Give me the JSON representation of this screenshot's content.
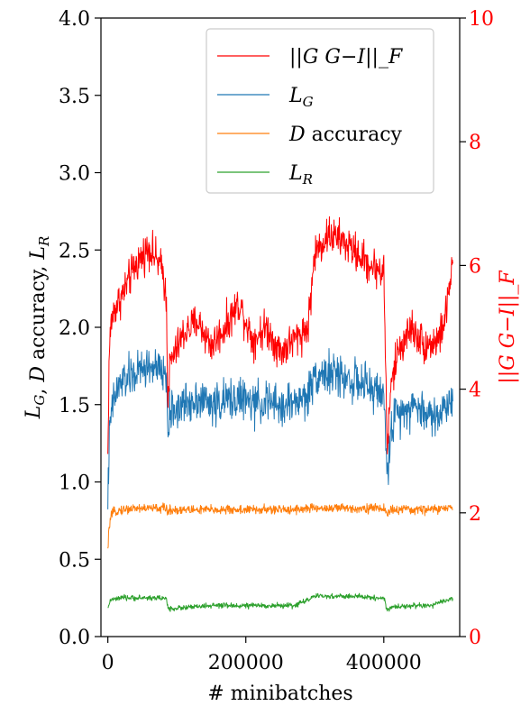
{
  "chart_data": {
    "type": "line",
    "xlabel": "# minibatches",
    "ylabel_left": "L_G, D accuracy, L_R",
    "ylabel_right": "||G G−I||_F",
    "xlim": [
      -10000,
      510000
    ],
    "ylim_left": [
      0.0,
      4.0
    ],
    "ylim_right": [
      0,
      10
    ],
    "x_ticks": [
      0,
      200000,
      400000
    ],
    "x_tick_labels": [
      "0",
      "200000",
      "400000"
    ],
    "y_left_ticks": [
      0.0,
      0.5,
      1.0,
      1.5,
      2.0,
      2.5,
      3.0,
      3.5,
      4.0
    ],
    "y_left_tick_labels": [
      "0.0",
      "0.5",
      "1.0",
      "1.5",
      "2.0",
      "2.5",
      "3.0",
      "3.5",
      "4.0"
    ],
    "y_right_ticks": [
      0,
      2,
      4,
      6,
      8,
      10
    ],
    "y_right_tick_labels": [
      "0",
      "2",
      "4",
      "6",
      "8",
      "10"
    ],
    "legend_position": "top-right",
    "grid": false,
    "colors": {
      "red": "#ff0000",
      "blue": "#1f77b4",
      "orange": "#ff7f0e",
      "green": "#2ca02c",
      "axis": "#000000"
    },
    "series": [
      {
        "name": "||G G−I||_F",
        "axis": "right",
        "color": "#ff0000",
        "noise": 0.45,
        "x": [
          0,
          2000,
          5000,
          10000,
          20000,
          40000,
          60000,
          80000,
          85000,
          87000,
          90000,
          110000,
          130000,
          150000,
          170000,
          190000,
          210000,
          230000,
          250000,
          270000,
          290000,
          300000,
          320000,
          340000,
          360000,
          380000,
          400000,
          403000,
          405000,
          410000,
          420000,
          440000,
          460000,
          480000,
          490000,
          500000
        ],
        "values": [
          2.9,
          4.6,
          5.1,
          5.3,
          5.5,
          6.0,
          6.3,
          5.9,
          5.4,
          3.8,
          4.4,
          4.9,
          5.1,
          4.7,
          5.0,
          5.4,
          4.8,
          5.0,
          4.6,
          4.8,
          5.0,
          6.2,
          6.5,
          6.4,
          6.2,
          6.0,
          5.9,
          4.2,
          3.0,
          4.0,
          4.6,
          5.0,
          4.7,
          4.8,
          5.2,
          6.1
        ]
      },
      {
        "name": "L_G",
        "axis": "left",
        "color": "#1f77b4",
        "noise": 0.2,
        "x": [
          0,
          2000,
          5000,
          10000,
          20000,
          40000,
          60000,
          80000,
          85000,
          87000,
          90000,
          110000,
          130000,
          150000,
          170000,
          190000,
          210000,
          230000,
          250000,
          270000,
          290000,
          300000,
          320000,
          340000,
          360000,
          380000,
          400000,
          403000,
          405000,
          410000,
          420000,
          440000,
          460000,
          480000,
          490000,
          500000
        ],
        "values": [
          0.9,
          1.25,
          1.45,
          1.55,
          1.65,
          1.7,
          1.75,
          1.7,
          1.7,
          1.3,
          1.45,
          1.5,
          1.55,
          1.5,
          1.52,
          1.55,
          1.5,
          1.52,
          1.48,
          1.52,
          1.55,
          1.7,
          1.7,
          1.68,
          1.65,
          1.6,
          1.58,
          1.2,
          1.0,
          1.35,
          1.45,
          1.5,
          1.45,
          1.42,
          1.5,
          1.55
        ]
      },
      {
        "name": "D accuracy",
        "axis": "left",
        "color": "#ff7f0e",
        "noise": 0.045,
        "x": [
          0,
          2000,
          5000,
          10000,
          20000,
          40000,
          60000,
          80000,
          85000,
          87000,
          90000,
          150000,
          200000,
          250000,
          300000,
          350000,
          400000,
          403000,
          405000,
          410000,
          450000,
          500000
        ],
        "values": [
          0.55,
          0.72,
          0.78,
          0.81,
          0.82,
          0.83,
          0.83,
          0.83,
          0.83,
          0.8,
          0.82,
          0.82,
          0.82,
          0.82,
          0.83,
          0.83,
          0.83,
          0.81,
          0.79,
          0.82,
          0.82,
          0.83
        ]
      },
      {
        "name": "L_R",
        "axis": "left",
        "color": "#2ca02c",
        "noise": 0.025,
        "x": [
          0,
          2000,
          5000,
          10000,
          20000,
          40000,
          60000,
          80000,
          85000,
          87000,
          90000,
          120000,
          150000,
          180000,
          210000,
          240000,
          270000,
          300000,
          330000,
          360000,
          390000,
          400000,
          403000,
          405000,
          410000,
          440000,
          470000,
          500000
        ],
        "values": [
          0.17,
          0.22,
          0.24,
          0.24,
          0.25,
          0.25,
          0.25,
          0.25,
          0.24,
          0.19,
          0.18,
          0.19,
          0.2,
          0.2,
          0.2,
          0.2,
          0.2,
          0.26,
          0.26,
          0.26,
          0.25,
          0.25,
          0.2,
          0.17,
          0.19,
          0.2,
          0.2,
          0.25
        ]
      }
    ]
  }
}
